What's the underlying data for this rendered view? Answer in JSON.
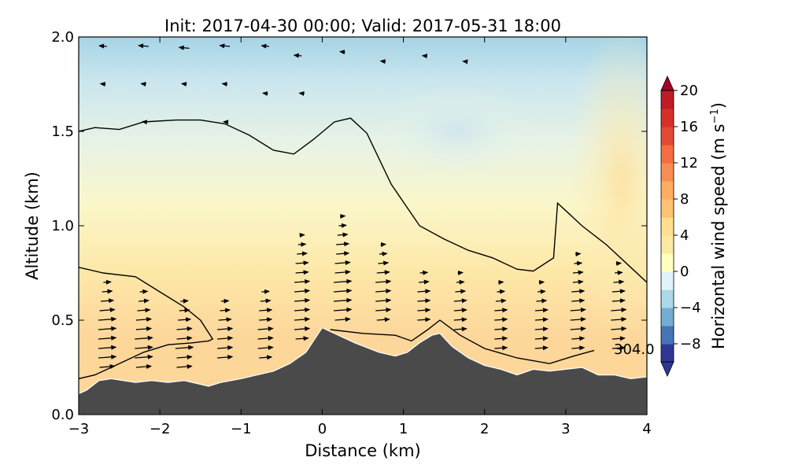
{
  "chart_data": {
    "type": "contour-cross-section",
    "title": "Init: 2017-04-30 00:00; Valid: 2017-05-31 18:00",
    "xlabel": "Distance (km)",
    "ylabel": "Altitude (km)",
    "xlim": [
      -3,
      4
    ],
    "ylim": [
      0.0,
      2.0
    ],
    "xticks": [
      -3,
      -2,
      -1,
      0,
      1,
      2,
      3,
      4
    ],
    "xtick_labels": [
      "−3",
      "−2",
      "−1",
      "0",
      "1",
      "2",
      "3",
      "4"
    ],
    "yticks": [
      0.0,
      0.5,
      1.0,
      1.5,
      2.0
    ],
    "ytick_labels": [
      "0.0",
      "0.5",
      "1.0",
      "1.5",
      "2.0"
    ],
    "colorbar": {
      "label_main": "Horizontal wind speed (m s",
      "label_sup": "−1",
      "label_end": ")",
      "range": [
        -10,
        20
      ],
      "ticks": [
        -8,
        -4,
        0,
        4,
        8,
        12,
        16,
        20
      ],
      "tick_labels": [
        "−8",
        "−4",
        "0",
        "4",
        "8",
        "12",
        "16",
        "20"
      ],
      "colormap": "RdYlBu_r",
      "extend": "both"
    },
    "contour_label": "304.0",
    "terrain": {
      "x": [
        -3.0,
        -2.9,
        -2.75,
        -2.6,
        -2.3,
        -2.1,
        -1.9,
        -1.7,
        -1.5,
        -1.4,
        -1.25,
        -1.0,
        -0.8,
        -0.6,
        -0.4,
        -0.2,
        0.0,
        0.15,
        0.4,
        0.7,
        0.9,
        1.05,
        1.2,
        1.35,
        1.45,
        1.6,
        1.8,
        2.0,
        2.2,
        2.4,
        2.6,
        2.8,
        3.0,
        3.2,
        3.4,
        3.6,
        3.8,
        4.0
      ],
      "y": [
        0.11,
        0.13,
        0.18,
        0.19,
        0.17,
        0.18,
        0.17,
        0.18,
        0.16,
        0.15,
        0.17,
        0.19,
        0.21,
        0.23,
        0.27,
        0.33,
        0.46,
        0.43,
        0.38,
        0.33,
        0.31,
        0.33,
        0.38,
        0.42,
        0.43,
        0.36,
        0.3,
        0.26,
        0.24,
        0.21,
        0.24,
        0.23,
        0.24,
        0.25,
        0.21,
        0.21,
        0.19,
        0.2
      ]
    },
    "wind_field": [
      {
        "x": -2.65,
        "levels": [
          0.25,
          0.3,
          0.35,
          0.4,
          0.45,
          0.5,
          0.55,
          0.6,
          0.65,
          0.7
        ],
        "u": [
          6,
          7,
          7,
          7,
          7,
          7,
          6,
          5,
          4,
          3
        ]
      },
      {
        "x": -2.2,
        "levels": [
          0.25,
          0.3,
          0.35,
          0.4,
          0.45,
          0.5,
          0.55,
          0.6,
          0.65
        ],
        "u": [
          6,
          7,
          7,
          7,
          6,
          6,
          5,
          4,
          3
        ]
      },
      {
        "x": -1.7,
        "levels": [
          0.25,
          0.3,
          0.35,
          0.4,
          0.45,
          0.5,
          0.55,
          0.6
        ],
        "u": [
          6,
          6,
          7,
          6,
          6,
          5,
          4,
          3
        ]
      },
      {
        "x": -1.2,
        "levels": [
          0.3,
          0.35,
          0.4,
          0.45,
          0.5,
          0.55,
          0.6
        ],
        "u": [
          6,
          6,
          6,
          6,
          5,
          4,
          3
        ]
      },
      {
        "x": -0.7,
        "levels": [
          0.3,
          0.35,
          0.4,
          0.45,
          0.5,
          0.55,
          0.6,
          0.65
        ],
        "u": [
          5,
          6,
          6,
          6,
          5,
          5,
          4,
          3
        ]
      },
      {
        "x": -0.25,
        "levels": [
          0.4,
          0.45,
          0.5,
          0.55,
          0.6,
          0.65,
          0.7,
          0.75,
          0.8,
          0.85,
          0.9,
          0.95
        ],
        "u": [
          5,
          6,
          6,
          6,
          6,
          6,
          6,
          5,
          5,
          4,
          3,
          2
        ]
      },
      {
        "x": 0.25,
        "levels": [
          0.5,
          0.55,
          0.6,
          0.65,
          0.7,
          0.75,
          0.8,
          0.85,
          0.9,
          0.95,
          1.0,
          1.05
        ],
        "u": [
          6,
          7,
          7,
          7,
          7,
          6,
          6,
          5,
          5,
          4,
          3,
          2
        ]
      },
      {
        "x": 0.75,
        "levels": [
          0.5,
          0.55,
          0.6,
          0.65,
          0.7,
          0.75,
          0.8,
          0.85,
          0.9
        ],
        "u": [
          5,
          6,
          6,
          6,
          6,
          5,
          4,
          3,
          2
        ]
      },
      {
        "x": 1.25,
        "levels": [
          0.5,
          0.55,
          0.6,
          0.65,
          0.7,
          0.75
        ],
        "u": [
          5,
          5,
          5,
          5,
          4,
          3
        ]
      },
      {
        "x": 1.7,
        "levels": [
          0.45,
          0.5,
          0.55,
          0.6,
          0.65,
          0.7,
          0.75
        ],
        "u": [
          5,
          5,
          5,
          5,
          4,
          3,
          2
        ]
      },
      {
        "x": 2.2,
        "levels": [
          0.35,
          0.4,
          0.45,
          0.5,
          0.55,
          0.6,
          0.65,
          0.7
        ],
        "u": [
          5,
          5,
          5,
          5,
          5,
          4,
          3,
          2
        ]
      },
      {
        "x": 2.7,
        "levels": [
          0.35,
          0.4,
          0.45,
          0.5,
          0.55,
          0.6,
          0.65,
          0.7
        ],
        "u": [
          5,
          5,
          5,
          5,
          5,
          4,
          3,
          2
        ]
      },
      {
        "x": 3.15,
        "levels": [
          0.35,
          0.4,
          0.45,
          0.5,
          0.55,
          0.6,
          0.65,
          0.7,
          0.75,
          0.8,
          0.85
        ],
        "u": [
          5,
          5,
          6,
          6,
          6,
          5,
          5,
          4,
          4,
          3,
          2
        ]
      },
      {
        "x": 3.65,
        "levels": [
          0.35,
          0.4,
          0.45,
          0.5,
          0.55,
          0.6,
          0.65,
          0.7,
          0.75,
          0.8
        ],
        "u": [
          5,
          5,
          6,
          6,
          6,
          5,
          5,
          4,
          3,
          2
        ]
      }
    ],
    "upper_wind": [
      {
        "x": -2.7,
        "y": 1.95,
        "u": -3
      },
      {
        "x": -2.2,
        "y": 1.95,
        "u": -4
      },
      {
        "x": -1.7,
        "y": 1.94,
        "u": -4
      },
      {
        "x": -1.2,
        "y": 1.95,
        "u": -4
      },
      {
        "x": -0.7,
        "y": 1.95,
        "u": -3
      },
      {
        "x": -0.3,
        "y": 1.9,
        "u": -3
      },
      {
        "x": 0.25,
        "y": 1.92,
        "u": -2
      },
      {
        "x": 0.75,
        "y": 1.87,
        "u": -2
      },
      {
        "x": 1.25,
        "y": 1.9,
        "u": -1
      },
      {
        "x": 1.75,
        "y": 1.87,
        "u": -1
      },
      {
        "x": -2.7,
        "y": 1.75,
        "u": -2
      },
      {
        "x": -2.2,
        "y": 1.75,
        "u": -2
      },
      {
        "x": -1.7,
        "y": 1.75,
        "u": -2
      },
      {
        "x": -1.2,
        "y": 1.75,
        "u": -2
      },
      {
        "x": -0.7,
        "y": 1.7,
        "u": -2
      },
      {
        "x": -0.25,
        "y": 1.7,
        "u": -2
      },
      {
        "x": -2.2,
        "y": 1.55,
        "u": -1
      },
      {
        "x": -1.2,
        "y": 1.55,
        "u": -1
      }
    ],
    "isentropes": [
      {
        "x": [
          -3.0,
          -2.8,
          -2.5,
          -2.2,
          -1.8,
          -1.5,
          -1.2,
          -0.9,
          -0.6,
          -0.35,
          -0.1,
          0.15,
          0.35,
          0.55,
          0.85,
          1.2,
          1.5,
          1.8,
          2.1,
          2.4,
          2.6,
          2.85,
          2.9,
          3.0,
          3.2,
          3.5,
          3.8,
          4.0
        ],
        "y": [
          1.5,
          1.52,
          1.51,
          1.55,
          1.56,
          1.56,
          1.54,
          1.48,
          1.4,
          1.38,
          1.46,
          1.55,
          1.57,
          1.49,
          1.22,
          1.0,
          0.93,
          0.87,
          0.83,
          0.77,
          0.76,
          0.83,
          1.12,
          1.08,
          1.0,
          0.9,
          0.78,
          0.7
        ]
      },
      {
        "x": [
          -3.0,
          -2.7,
          -2.3,
          -2.0,
          -1.7,
          -1.5,
          -1.35,
          -1.4,
          -1.6,
          -1.9,
          -2.2,
          -2.5,
          -2.8,
          -3.0
        ],
        "y": [
          0.78,
          0.75,
          0.73,
          0.65,
          0.57,
          0.5,
          0.4,
          0.39,
          0.38,
          0.37,
          0.33,
          0.27,
          0.21,
          0.19
        ]
      },
      {
        "x": [
          0.1,
          0.5,
          0.9,
          1.1,
          1.3,
          1.45,
          1.7,
          2.0,
          2.4,
          2.8,
          3.1,
          3.35
        ],
        "y": [
          0.45,
          0.43,
          0.42,
          0.39,
          0.45,
          0.5,
          0.42,
          0.35,
          0.3,
          0.27,
          0.31,
          0.34
        ]
      }
    ]
  }
}
